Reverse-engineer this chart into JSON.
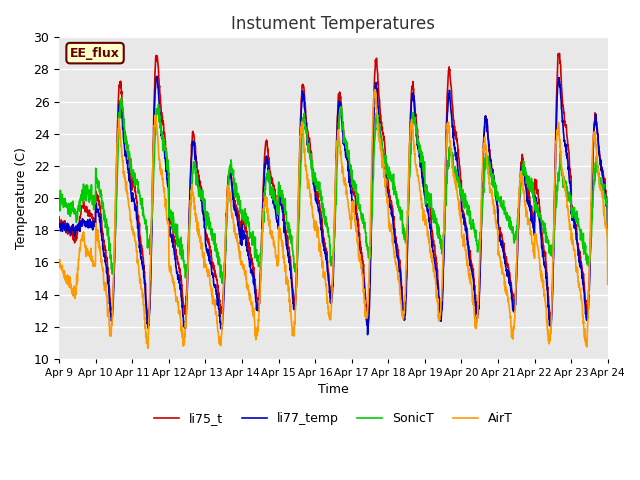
{
  "title": "Instument Temperatures",
  "xlabel": "Time",
  "ylabel": "Temperature (C)",
  "ylim": [
    10,
    30
  ],
  "xlim": [
    0,
    15
  ],
  "xtick_labels": [
    "Apr 9",
    "Apr 10",
    "Apr 11",
    "Apr 12",
    "Apr 13",
    "Apr 14",
    "Apr 15",
    "Apr 16",
    "Apr 17",
    "Apr 18",
    "Apr 19",
    "Apr 20",
    "Apr 21",
    "Apr 22",
    "Apr 23",
    "Apr 24"
  ],
  "xtick_positions": [
    0,
    1,
    2,
    3,
    4,
    5,
    6,
    7,
    8,
    9,
    10,
    11,
    12,
    13,
    14,
    15
  ],
  "colors": {
    "li75_t": "#cc0000",
    "li77_temp": "#0000cc",
    "SonicT": "#00cc00",
    "AirT": "#ff9900"
  },
  "linewidth": 1.2,
  "annotation_text": "EE_flux",
  "annotation_color": "#660000",
  "annotation_bg": "#ffffcc",
  "bg_color": "#e8e8e8",
  "fig_color": "#ffffff",
  "grid_color": "#ffffff",
  "title_fontsize": 12,
  "label_fontsize": 9
}
